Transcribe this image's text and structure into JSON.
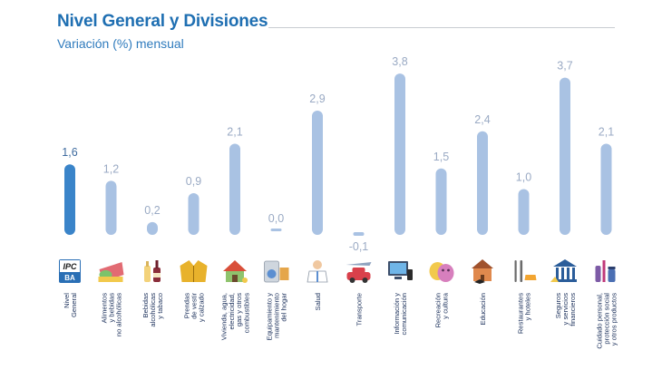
{
  "header": {
    "title": "Nivel General y Divisiones",
    "subtitle": "Variación (%) mensual"
  },
  "colors": {
    "highlight_bar": "#3a84c9",
    "bar": "#a9c2e3",
    "title": "#1f6fb2",
    "category_text": "#1a2f5a"
  },
  "chart_data": {
    "type": "bar",
    "title": "Nivel General y Divisiones",
    "subtitle": "Variación (%) mensual",
    "categories": [
      [
        "Nivel",
        "General"
      ],
      [
        "Alimentos",
        "y bebidas",
        "no alcohólicas"
      ],
      [
        "Bebidas",
        "alcohólicas",
        "y tabaco"
      ],
      [
        "Prendas",
        "de vestir",
        "y calzado"
      ],
      [
        "Vivienda, agua,",
        "electricidad,",
        "gas y otros",
        "combustibles"
      ],
      [
        "Equipamiento y",
        "mantenimiento",
        "del hogar"
      ],
      [
        "Salud"
      ],
      [
        "Transporte"
      ],
      [
        "Información y",
        "comunicación"
      ],
      [
        "Recreación",
        "y cultura"
      ],
      [
        "Educación"
      ],
      [
        "Restaurantes",
        "y hoteles"
      ],
      [
        "Seguros",
        "y servicios",
        "financieros"
      ],
      [
        "Cuidado personal,",
        "protección social",
        "y otros productos"
      ]
    ],
    "values": [
      1.6,
      1.2,
      0.2,
      0.9,
      2.1,
      0.0,
      2.9,
      -0.1,
      3.8,
      1.5,
      2.4,
      1.0,
      3.7,
      2.1
    ],
    "value_labels": [
      "1,6",
      "1,2",
      "0,2",
      "0,9",
      "2,1",
      "0,0",
      "2,9",
      "-0,1",
      "3,8",
      "1,5",
      "2,4",
      "1,0",
      "3,7",
      "2,1"
    ],
    "highlight_index": 0,
    "icons": [
      "ipc-ba-logo-icon",
      "food-basket-icon",
      "wine-bottle-icon",
      "jacket-icon",
      "house-icon",
      "washing-machine-icon",
      "doctor-icon",
      "car-plane-icon",
      "computer-icon",
      "theater-masks-icon",
      "school-icon",
      "cutlery-icon",
      "bank-icon",
      "cosmetics-icon"
    ],
    "icon_text": "IPC BA",
    "ylim": [
      -0.1,
      3.8
    ],
    "grid": false,
    "legend": "none"
  }
}
